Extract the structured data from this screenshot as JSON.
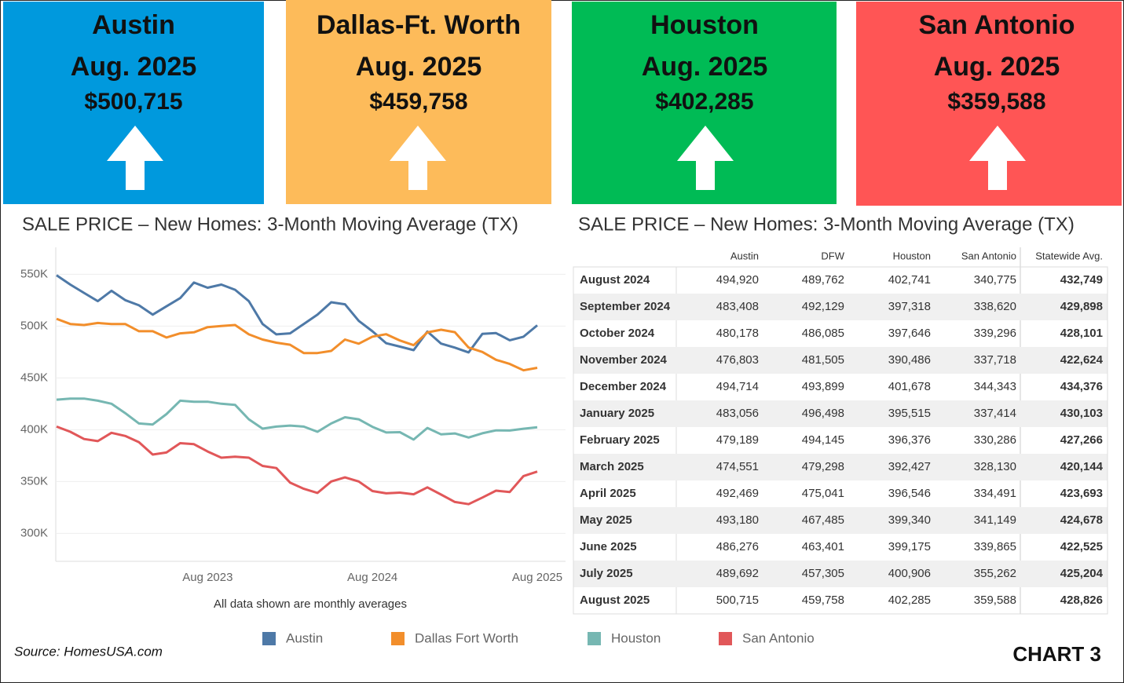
{
  "cards": [
    {
      "city": "Austin",
      "period": "Aug. 2025",
      "price": "$500,715"
    },
    {
      "city": "Dallas-Ft. Worth",
      "period": "Aug. 2025",
      "price": "$459,758"
    },
    {
      "city": "Houston",
      "period": "Aug. 2025",
      "price": "$402,285"
    },
    {
      "city": "San Antonio",
      "period": "Aug. 2025",
      "price": "$359,588"
    }
  ],
  "chart_data": {
    "type": "line",
    "title": "SALE PRICE – New Homes: 3-Month Moving Average (TX)",
    "note": "All data shown are monthly averages",
    "categories": [
      null,
      null,
      null,
      null,
      null,
      null,
      null,
      null,
      null,
      null,
      null,
      "Aug 2023",
      null,
      null,
      null,
      null,
      null,
      null,
      null,
      null,
      null,
      null,
      null,
      "Aug 2024",
      null,
      null,
      null,
      null,
      null,
      null,
      null,
      null,
      null,
      null,
      null,
      "Aug 2025"
    ],
    "ylim": [
      273000,
      576000
    ],
    "yticks": [
      {
        "value": 300000,
        "label": "300K"
      },
      {
        "value": 350000,
        "label": "350K"
      },
      {
        "value": 400000,
        "label": "400K"
      },
      {
        "value": 450000,
        "label": "450K"
      },
      {
        "value": 500000,
        "label": "500K"
      },
      {
        "value": 550000,
        "label": "550K"
      }
    ],
    "grid": true,
    "series": [
      {
        "name": "Austin",
        "color": "#4e79a7",
        "values": [
          549000,
          540000,
          532000,
          524000,
          534000,
          525000,
          520000,
          511000,
          519000,
          527000,
          542000,
          537000,
          540000,
          535000,
          524000,
          502000,
          492000,
          493000,
          502000,
          511000,
          523000,
          521000,
          505000,
          494920,
          483408,
          480178,
          476803,
          494714,
          483056,
          479189,
          474551,
          492469,
          493180,
          486276,
          489692,
          500715
        ]
      },
      {
        "name": "Dallas Fort Worth",
        "color": "#f28e2b",
        "values": [
          507000,
          502000,
          501000,
          503000,
          502000,
          502000,
          495000,
          495000,
          489000,
          493000,
          494000,
          499000,
          500000,
          501000,
          492000,
          487000,
          484000,
          482000,
          474000,
          474000,
          476000,
          487000,
          483000,
          489762,
          492129,
          486085,
          481505,
          493899,
          496498,
          494145,
          479298,
          475041,
          467485,
          463401,
          457305,
          459758
        ]
      },
      {
        "name": "Houston",
        "color": "#76b7b2",
        "values": [
          429000,
          430000,
          430000,
          428000,
          425000,
          416000,
          406000,
          405000,
          415000,
          428000,
          427000,
          427000,
          425000,
          424000,
          410000,
          401000,
          403000,
          404000,
          403000,
          398000,
          406000,
          412000,
          410000,
          402741,
          397318,
          397646,
          390486,
          401678,
          395515,
          396376,
          392427,
          396546,
          399340,
          399175,
          400906,
          402285
        ]
      },
      {
        "name": "San Antonio",
        "color": "#e15759",
        "values": [
          403000,
          398000,
          391000,
          389000,
          397000,
          394000,
          388000,
          376000,
          378000,
          387000,
          386000,
          379000,
          373000,
          374000,
          373000,
          365000,
          363000,
          349000,
          343000,
          339000,
          350000,
          354000,
          350000,
          340775,
          338620,
          339296,
          337718,
          344343,
          337414,
          330286,
          328130,
          334491,
          341149,
          339865,
          355262,
          359588
        ]
      }
    ]
  },
  "table": {
    "title": "SALE PRICE – New Homes: 3-Month Moving Average (TX)",
    "columns": [
      "Austin",
      "DFW",
      "Houston",
      "San Antonio",
      "Statewide Avg."
    ],
    "rows": [
      {
        "label": "August 2024",
        "values": [
          "494,920",
          "489,762",
          "402,741",
          "340,775",
          "432,749"
        ]
      },
      {
        "label": "September 2024",
        "values": [
          "483,408",
          "492,129",
          "397,318",
          "338,620",
          "429,898"
        ]
      },
      {
        "label": "October 2024",
        "values": [
          "480,178",
          "486,085",
          "397,646",
          "339,296",
          "428,101"
        ]
      },
      {
        "label": "November 2024",
        "values": [
          "476,803",
          "481,505",
          "390,486",
          "337,718",
          "422,624"
        ]
      },
      {
        "label": "December 2024",
        "values": [
          "494,714",
          "493,899",
          "401,678",
          "344,343",
          "434,376"
        ]
      },
      {
        "label": "January 2025",
        "values": [
          "483,056",
          "496,498",
          "395,515",
          "337,414",
          "430,103"
        ]
      },
      {
        "label": "February 2025",
        "values": [
          "479,189",
          "494,145",
          "396,376",
          "330,286",
          "427,266"
        ]
      },
      {
        "label": "March 2025",
        "values": [
          "474,551",
          "479,298",
          "392,427",
          "328,130",
          "420,144"
        ]
      },
      {
        "label": "April 2025",
        "values": [
          "492,469",
          "475,041",
          "396,546",
          "334,491",
          "423,693"
        ]
      },
      {
        "label": "May 2025",
        "values": [
          "493,180",
          "467,485",
          "399,340",
          "341,149",
          "424,678"
        ]
      },
      {
        "label": "June 2025",
        "values": [
          "486,276",
          "463,401",
          "399,175",
          "339,865",
          "422,525"
        ]
      },
      {
        "label": "July 2025",
        "values": [
          "489,692",
          "457,305",
          "400,906",
          "355,262",
          "425,204"
        ]
      },
      {
        "label": "August 2025",
        "values": [
          "500,715",
          "459,758",
          "402,285",
          "359,588",
          "428,826"
        ]
      }
    ]
  },
  "source": "Source: HomesUSA.com",
  "chart_label": "CHART 3"
}
